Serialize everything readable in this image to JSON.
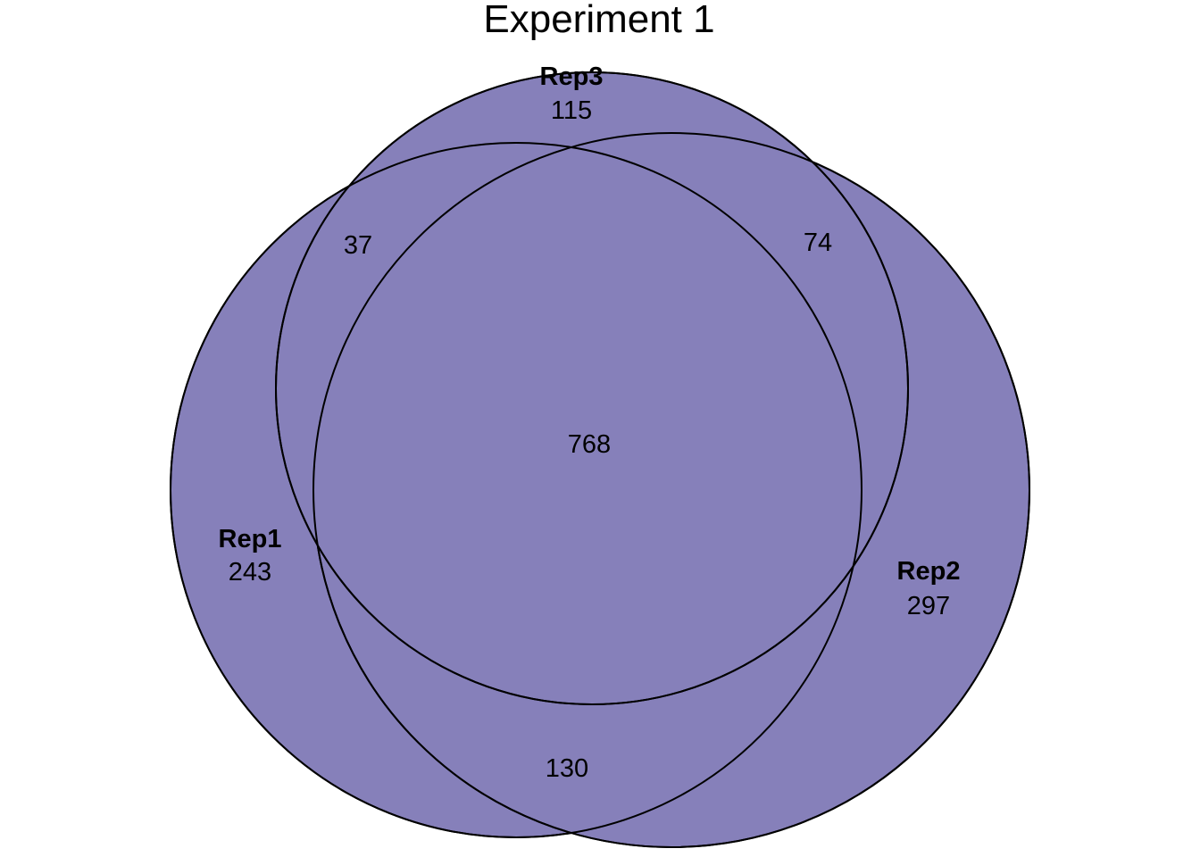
{
  "title": "Experiment 1",
  "colors": {
    "fill": "#8680BA",
    "stroke": "#000000",
    "background": "#FFFFFF"
  },
  "sets": [
    {
      "id": "rep1",
      "name": "Rep1",
      "only_count": "243"
    },
    {
      "id": "rep2",
      "name": "Rep2",
      "only_count": "297"
    },
    {
      "id": "rep3",
      "name": "Rep3",
      "only_count": "115"
    }
  ],
  "intersections": {
    "rep1_rep3": "37",
    "rep2_rep3": "74",
    "rep1_rep2": "130",
    "all_three": "768"
  }
}
